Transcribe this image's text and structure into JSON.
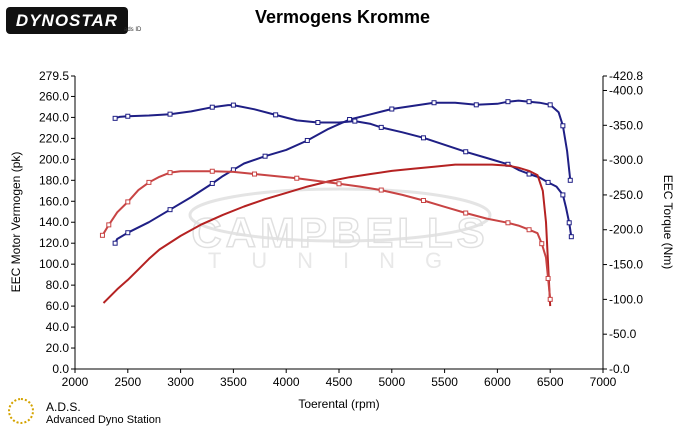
{
  "header": {
    "title": "Vermogens Kromme",
    "logo_text": "DYNOSTAR",
    "logo_sub": "ads ID"
  },
  "footer": {
    "brand": "A.D.S.",
    "brand_sub": "Advanced Dyno Station"
  },
  "watermark": {
    "line1": "CAMPBELLS",
    "line2": "TUNING"
  },
  "chart_data": {
    "type": "line",
    "title": "Vermogens Kromme",
    "xlabel": "Toerental (rpm)",
    "ylabel": "EEC Motor Vermogen (pk)",
    "y2label": "EEC Torque (Nm)",
    "xlim": [
      2000,
      7000
    ],
    "ylim": [
      0,
      279.5
    ],
    "y2lim": [
      0,
      420.8
    ],
    "x_ticks": [
      2000,
      2500,
      3000,
      3500,
      4000,
      4500,
      5000,
      5500,
      6000,
      6500,
      7000
    ],
    "y_ticks": [
      "0.0",
      "20.0",
      "40.0",
      "60.0",
      "80.0",
      "100.0",
      "120.0",
      "140.0",
      "160.0",
      "180.0",
      "200.0",
      "220.0",
      "240.0",
      "260.0",
      "279.5"
    ],
    "y_tick_values": [
      0,
      20,
      40,
      60,
      80,
      100,
      120,
      140,
      160,
      180,
      200,
      220,
      240,
      260,
      279.5
    ],
    "y2_ticks": [
      "0.0",
      "50.0",
      "100.0",
      "150.0",
      "200.0",
      "250.0",
      "300.0",
      "350.0",
      "400.0",
      "420.8"
    ],
    "y2_tick_values": [
      0,
      50,
      100,
      150,
      200,
      250,
      300,
      350,
      400,
      420.8
    ],
    "grid": false,
    "colors": {
      "blue_power": "#1f1f85",
      "blue_torque": "#1f1f85",
      "red_power": "#b52222",
      "red_torque": "#c84444"
    },
    "series": [
      {
        "key": "blue_power",
        "axis": "left",
        "marker": true,
        "x": [
          2380,
          2400,
          2500,
          2700,
          2900,
          3100,
          3300,
          3400,
          3500,
          3600,
          3800,
          4000,
          4200,
          4400,
          4600,
          4800,
          5000,
          5200,
          5400,
          5600,
          5800,
          6000,
          6100,
          6200,
          6300,
          6400,
          6500,
          6580,
          6620,
          6660,
          6690
        ],
        "y": [
          120,
          124,
          130,
          140,
          152,
          164,
          177,
          184,
          190,
          196,
          203,
          209,
          218,
          229,
          238,
          243,
          248,
          251,
          254,
          254,
          252,
          253,
          255,
          256,
          255,
          254,
          252,
          245,
          232,
          208,
          180
        ]
      },
      {
        "key": "blue_torque",
        "axis": "right",
        "marker": true,
        "x": [
          2380,
          2420,
          2500,
          2700,
          2900,
          3100,
          3300,
          3450,
          3500,
          3700,
          3900,
          4100,
          4300,
          4500,
          4650,
          4800,
          4900,
          5100,
          5300,
          5500,
          5700,
          5900,
          6100,
          6200,
          6300,
          6400,
          6480,
          6560,
          6620,
          6650,
          6680,
          6700
        ],
        "y": [
          360,
          362,
          363,
          364,
          366,
          370,
          376,
          379,
          379,
          373,
          365,
          357,
          354,
          354,
          356,
          352,
          347,
          340,
          332,
          322,
          312,
          303,
          294,
          286,
          280,
          275,
          268,
          262,
          250,
          232,
          210,
          190
        ]
      },
      {
        "key": "red_power",
        "axis": "left",
        "marker": false,
        "x": [
          2270,
          2300,
          2400,
          2500,
          2600,
          2700,
          2800,
          3000,
          3200,
          3400,
          3600,
          3800,
          4000,
          4200,
          4400,
          4600,
          4800,
          5000,
          5200,
          5400,
          5600,
          5800,
          5950,
          6100,
          6200,
          6300,
          6380,
          6430,
          6460,
          6480,
          6500
        ],
        "y": [
          63,
          66,
          76,
          85,
          95,
          105,
          114,
          127,
          138,
          147,
          155,
          162,
          168,
          174,
          179,
          183,
          186,
          189,
          191,
          193,
          195,
          195,
          195,
          194,
          192,
          189,
          185,
          170,
          140,
          100,
          60
        ]
      },
      {
        "key": "red_torque",
        "axis": "right",
        "marker": true,
        "x": [
          2260,
          2280,
          2320,
          2400,
          2500,
          2600,
          2700,
          2800,
          2900,
          3000,
          3300,
          3500,
          3700,
          3900,
          4100,
          4300,
          4500,
          4700,
          4900,
          5100,
          5300,
          5500,
          5700,
          5900,
          6100,
          6200,
          6300,
          6380,
          6420,
          6460,
          6480,
          6500
        ],
        "y": [
          192,
          197,
          207,
          225,
          240,
          257,
          268,
          276,
          282,
          284,
          284,
          283,
          280,
          277,
          274,
          270,
          266,
          262,
          257,
          250,
          242,
          233,
          224,
          216,
          210,
          206,
          200,
          195,
          180,
          160,
          130,
          100
        ]
      }
    ]
  }
}
